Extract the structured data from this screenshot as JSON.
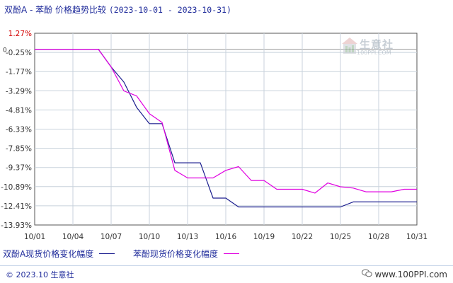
{
  "title": {
    "text": "双酚A - 苯酚 价格趋势比较",
    "range": "(2023-10-01 - 2023-10-31)"
  },
  "chart_data": {
    "type": "line",
    "title": "双酚A - 苯酚 价格趋势比较 (2023-10-01 - 2023-10-31)",
    "y_ticks": [
      "1.27%",
      "0",
      "-0.25%",
      "-1.77%",
      "-3.29%",
      "-4.81%",
      "-6.33%",
      "-7.85%",
      "-9.37%",
      "-10.89%",
      "-12.41%",
      "-13.93%"
    ],
    "ylim": [
      -13.93,
      1.27
    ],
    "y_unit": "%",
    "x_ticks": [
      "10/01",
      "10/04",
      "10/07",
      "10/10",
      "10/13",
      "10/16",
      "10/19",
      "10/22",
      "10/25",
      "10/28",
      "10/31"
    ],
    "xlim": [
      "2023-10-01",
      "2023-10-31"
    ],
    "grid": true,
    "legend_position": "bottom-left",
    "series": [
      {
        "name": "双酚A现货价格变化幅度",
        "color": "#1c1f8f",
        "x": [
          "2023-10-01",
          "2023-10-06",
          "2023-10-07",
          "2023-10-08",
          "2023-10-09",
          "2023-10-10",
          "2023-10-11",
          "2023-10-12",
          "2023-10-13",
          "2023-10-14",
          "2023-10-15",
          "2023-10-16",
          "2023-10-17",
          "2023-10-18",
          "2023-10-19",
          "2023-10-20",
          "2023-10-21",
          "2023-10-22",
          "2023-10-23",
          "2023-10-24",
          "2023-10-25",
          "2023-10-26",
          "2023-10-27",
          "2023-10-28",
          "2023-10-29",
          "2023-10-30",
          "2023-10-31"
        ],
        "y": [
          0,
          0,
          -1.4,
          -2.6,
          -4.6,
          -5.9,
          -5.9,
          -9.0,
          -9.0,
          -9.0,
          -11.8,
          -11.8,
          -12.5,
          -12.5,
          -12.5,
          -12.5,
          -12.5,
          -12.5,
          -12.5,
          -12.5,
          -12.5,
          -12.1,
          -12.1,
          -12.1,
          -12.1,
          -12.1,
          -12.1
        ]
      },
      {
        "name": "苯酚现货价格变化幅度",
        "color": "#e000e0",
        "x": [
          "2023-10-01",
          "2023-10-05",
          "2023-10-06",
          "2023-10-07",
          "2023-10-08",
          "2023-10-09",
          "2023-10-10",
          "2023-10-11",
          "2023-10-12",
          "2023-10-13",
          "2023-10-14",
          "2023-10-15",
          "2023-10-16",
          "2023-10-17",
          "2023-10-18",
          "2023-10-19",
          "2023-10-20",
          "2023-10-21",
          "2023-10-22",
          "2023-10-23",
          "2023-10-24",
          "2023-10-25",
          "2023-10-26",
          "2023-10-27",
          "2023-10-28",
          "2023-10-29",
          "2023-10-30",
          "2023-10-31"
        ],
        "y": [
          0,
          0,
          0,
          -1.4,
          -3.3,
          -3.7,
          -5.1,
          -5.8,
          -9.6,
          -10.2,
          -10.2,
          -10.2,
          -9.6,
          -9.3,
          -10.4,
          -10.4,
          -11.1,
          -11.1,
          -11.1,
          -11.4,
          -10.6,
          -10.9,
          -11.0,
          -11.3,
          -11.3,
          -11.3,
          -11.1,
          -11.1
        ]
      }
    ]
  },
  "legend": {
    "series1_label": "双酚A现货价格变化幅度",
    "series2_label": "苯酚现货价格变化幅度"
  },
  "watermark": {
    "name": "生意社",
    "url": "100PPI.COM"
  },
  "footer": {
    "copyright": "© 2023.10 生意社",
    "site": "www.100PPI.com"
  },
  "colors": {
    "series1": "#1c1f8f",
    "series2": "#e000e0",
    "title": "#1e2a9a",
    "grid": "#c8d2dc",
    "axis": "#333333"
  }
}
